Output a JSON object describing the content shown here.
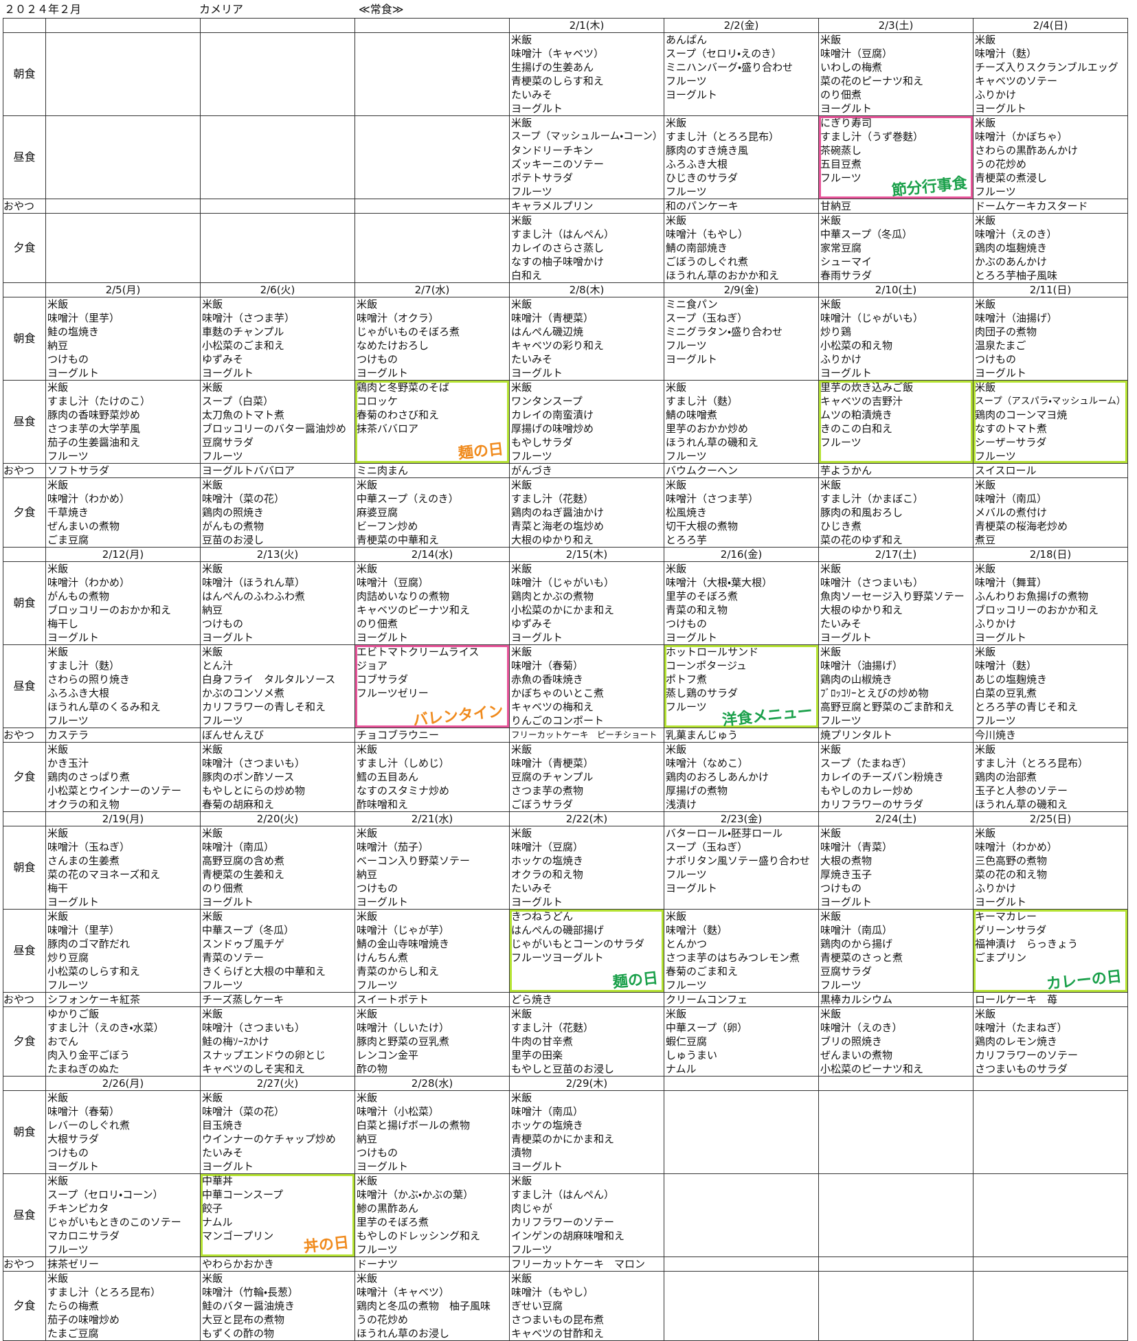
{
  "header": {
    "month": "２０２４年２月",
    "facility": "カメリア",
    "diet": "≪常食≫"
  },
  "meal_labels": {
    "breakfast": "朝食",
    "lunch": "昼食",
    "snack": "おやつ",
    "dinner": "夕食"
  },
  "annotations": [
    "節分行事食",
    "麺の日",
    "バレンタイン",
    "洋食メニュー",
    "麺の日",
    "カレーの日",
    "丼の日"
  ],
  "weeks": [
    {
      "days": [
        null,
        null,
        null,
        {
          "date": "2/1(木)",
          "breakfast": [
            "米飯",
            "味噌汁（キャベツ）",
            "生揚げの生姜あん",
            "青梗菜のしらす和え",
            "たいみそ",
            "ヨーグルト"
          ],
          "lunch": [
            "米飯",
            "スープ（マッシュルーム・コーン）",
            "タンドリーチキン",
            "ズッキーニのソテー",
            "ポテトサラダ",
            "フルーツ"
          ],
          "snack": "キャラメルプリン",
          "dinner": [
            "米飯",
            "すまし汁（はんぺん）",
            "カレイのさらさ蒸し",
            "なすの柚子味噌かけ",
            "白和え"
          ]
        },
        {
          "date": "2/2(金)",
          "breakfast": [
            "あんぱん",
            "スープ（セロリ・えのき）",
            "ミニハンバーグ・盛り合わせ",
            "フルーツ",
            "ヨーグルト"
          ],
          "lunch": [
            "米飯",
            "すまし汁（とろろ昆布）",
            "豚肉のすき焼き風",
            "ふろふき大根",
            "ひじきのサラダ",
            "フルーツ"
          ],
          "snack": "和のパンケーキ",
          "dinner": [
            "米飯",
            "味噌汁（もやし）",
            "鯖の南部焼き",
            "ごぼうのしぐれ煮",
            "ほうれん草のおかか和え"
          ]
        },
        {
          "date": "2/3(土)",
          "breakfast": [
            "米飯",
            "味噌汁（豆腐）",
            "いわしの梅煮",
            "菜の花のピーナツ和え",
            "のり佃煮",
            "ヨーグルト"
          ],
          "lunch": [
            "にぎり寿司",
            "すまし汁（うず巻麩）",
            "茶碗蒸し",
            "五目豆煮",
            "フルーツ"
          ],
          "snack": "甘納豆",
          "dinner": [
            "米飯",
            "中華スープ（冬瓜）",
            "家常豆腐",
            "シューマイ",
            "春雨サラダ"
          ]
        },
        {
          "date": "2/4(日)",
          "breakfast": [
            "米飯",
            "味噌汁（麩）",
            "チーズ入りスクランブルエッグ",
            "キャベツのソテー",
            "ふりかけ",
            "ヨーグルト"
          ],
          "lunch": [
            "米飯",
            "味噌汁（かぼちゃ）",
            "さわらの黒酢あんかけ",
            "うの花炒め",
            "青梗菜の煮浸し",
            "フルーツ"
          ],
          "snack": "ドームケーキカスタード",
          "dinner": [
            "米飯",
            "味噌汁（えのき）",
            "鶏肉の塩麹焼き",
            "かぶのあんかけ",
            "とろろ芋柚子風味"
          ]
        }
      ]
    },
    {
      "days": [
        {
          "date": "2/5(月)",
          "breakfast": [
            "米飯",
            "味噌汁（里芋）",
            "鮭の塩焼き",
            "納豆",
            "つけもの",
            "ヨーグルト"
          ],
          "lunch": [
            "米飯",
            "すまし汁（たけのこ）",
            "豚肉の香味野菜炒め",
            "さつま芋の大学芋風",
            "茄子の生姜醤油和え",
            "フルーツ"
          ],
          "snack": "ソフトサラダ",
          "dinner": [
            "米飯",
            "味噌汁（わかめ）",
            "千草焼き",
            "ぜんまいの煮物",
            "ごま豆腐"
          ]
        },
        {
          "date": "2/6(火)",
          "breakfast": [
            "米飯",
            "味噌汁（さつま芋）",
            "車麩のチャンプル",
            "小松菜のごま和え",
            "ゆずみそ",
            "ヨーグルト"
          ],
          "lunch": [
            "米飯",
            "スープ（白菜）",
            "太刀魚のトマト煮",
            "ブロッコリーのバター醤油炒め",
            "豆腐サラダ",
            "フルーツ"
          ],
          "snack": "ヨーグルトババロア",
          "dinner": [
            "米飯",
            "味噌汁（菜の花）",
            "鶏肉の照焼き",
            "がんもの煮物",
            "豆苗のお浸し"
          ]
        },
        {
          "date": "2/7(水)",
          "breakfast": [
            "米飯",
            "味噌汁（オクラ）",
            "じゃがいものそぼろ煮",
            "なめたけおろし",
            "つけもの",
            "ヨーグルト"
          ],
          "lunch": [
            "鶏肉と冬野菜のそば",
            "コロッケ",
            "春菊のわさび和え",
            "抹茶ババロア"
          ],
          "snack": "ミニ肉まん",
          "dinner": [
            "米飯",
            "中華スープ（えのき）",
            "麻婆豆腐",
            "ビーフン炒め",
            "青梗菜の中華和え"
          ]
        },
        {
          "date": "2/8(木)",
          "breakfast": [
            "米飯",
            "味噌汁（青梗菜）",
            "はんぺん磯辺焼",
            "キャベツの彩り和え",
            "たいみそ",
            "ヨーグルト"
          ],
          "lunch": [
            "米飯",
            "ワンタンスープ",
            "カレイの南蛮漬け",
            "厚揚げの味噌炒め",
            "もやしサラダ",
            "フルーツ"
          ],
          "snack": "がんづき",
          "dinner": [
            "米飯",
            "すまし汁（花麩）",
            "鶏肉のねぎ醤油かけ",
            "青菜と海老の塩炒め",
            "大根のゆかり和え"
          ]
        },
        {
          "date": "2/9(金)",
          "breakfast": [
            "ミニ食パン",
            "スープ（玉ねぎ）",
            "ミニグラタン・盛り合わせ",
            "フルーツ",
            "ヨーグルト"
          ],
          "lunch": [
            "米飯",
            "すまし汁（麩）",
            "鯖の味噌煮",
            "里芋のおかか炒め",
            "ほうれん草の磯和え",
            "フルーツ"
          ],
          "snack": "バウムクーヘン",
          "dinner": [
            "米飯",
            "味噌汁（さつま芋）",
            "松風焼き",
            "切干大根の煮物",
            "とろろ芋"
          ]
        },
        {
          "date": "2/10(土)",
          "breakfast": [
            "米飯",
            "味噌汁（じゃがいも）",
            "炒り鶏",
            "小松菜の和え物",
            "ふりかけ",
            "ヨーグルト"
          ],
          "lunch": [
            "里芋の炊き込みご飯",
            "キャベツの吉野汁",
            "ムツの粕漬焼き",
            "きのこの白和え",
            "フルーツ"
          ],
          "snack": "芋ようかん",
          "dinner": [
            "米飯",
            "すまし汁（かまぼこ）",
            "豚肉の和風おろし",
            "ひじき煮",
            "菜の花のゆず和え"
          ]
        },
        {
          "date": "2/11(日)",
          "breakfast": [
            "米飯",
            "味噌汁（油揚げ）",
            "肉団子の煮物",
            "温泉たまご",
            "つけもの",
            "ヨーグルト"
          ],
          "lunch": [
            "米飯",
            "スープ（アスパラ・マッシュルーム）",
            "鶏肉のコーンマヨ焼",
            "なすのトマト煮",
            "シーザーサラダ",
            "フルーツ"
          ],
          "snack": "スイスロール",
          "dinner": [
            "米飯",
            "味噌汁（南瓜）",
            "メバルの煮付け",
            "青梗菜の桜海老炒め",
            "煮豆"
          ]
        }
      ]
    },
    {
      "days": [
        {
          "date": "2/12(月)",
          "breakfast": [
            "米飯",
            "味噌汁（わかめ）",
            "がんもの煮物",
            "ブロッコリーのおかか和え",
            "梅干し",
            "ヨーグルト"
          ],
          "lunch": [
            "米飯",
            "すまし汁（麩）",
            "さわらの照り焼き",
            "ふろふき大根",
            "ほうれん草のくるみ和え",
            "フルーツ"
          ],
          "snack": "カステラ",
          "dinner": [
            "米飯",
            "かき玉汁",
            "鶏肉のさっぱり煮",
            "小松菜とウインナーのソテー",
            "オクラの和え物"
          ]
        },
        {
          "date": "2/13(火)",
          "breakfast": [
            "米飯",
            "味噌汁（ほうれん草）",
            "はんぺんのふわふわ煮",
            "納豆",
            "つけもの",
            "ヨーグルト"
          ],
          "lunch": [
            "米飯",
            "とん汁",
            "白身フライ　タルタルソース",
            "かぶのコンソメ煮",
            "カリフラワーの青しそ和え",
            "フルーツ"
          ],
          "snack": "ぼんせんえび",
          "dinner": [
            "米飯",
            "味噌汁（さつまいも）",
            "豚肉のポン酢ソース",
            "もやしとにらの炒め物",
            "春菊の胡麻和え"
          ]
        },
        {
          "date": "2/14(水)",
          "breakfast": [
            "米飯",
            "味噌汁（豆腐）",
            "肉詰めいなりの煮物",
            "キャベツのピーナツ和え",
            "のり佃煮",
            "ヨーグルト"
          ],
          "lunch": [
            "エビトマトクリームライス",
            "ジョア",
            "コブサラダ",
            "フルーツゼリー"
          ],
          "snack": "チョコブラウニー",
          "dinner": [
            "米飯",
            "すまし汁（しめじ）",
            "鱈の五目あん",
            "なすのスタミナ炒め",
            "酢味噌和え"
          ]
        },
        {
          "date": "2/15(木)",
          "breakfast": [
            "米飯",
            "味噌汁（じゃがいも）",
            "鶏肉とかぶの煮物",
            "小松菜のかにかま和え",
            "ゆずみそ",
            "ヨーグルト"
          ],
          "lunch": [
            "米飯",
            "味噌汁（春菊）",
            "赤魚の香味焼き",
            "かぼちゃのいとこ煮",
            "キャベツの梅和え",
            "りんごのコンポート"
          ],
          "snack": "フリーカットケーキ　ピーチショート",
          "dinner": [
            "米飯",
            "味噌汁（青梗菜）",
            "豆腐のチャンプル",
            "さつま芋の煮物",
            "ごぼうサラダ"
          ]
        },
        {
          "date": "2/16(金)",
          "breakfast": [
            "米飯",
            "味噌汁（大根・葉大根）",
            "里芋のそぼろ煮",
            "青菜の和え物",
            "つけもの",
            "ヨーグルト"
          ],
          "lunch": [
            "ホットロールサンド",
            "コーンポタージュ",
            "ポトフ煮",
            "蒸し鶏のサラダ",
            "フルーツ"
          ],
          "snack": "乳菓まんじゅう",
          "dinner": [
            "米飯",
            "味噌汁（なめこ）",
            "鶏肉のおろしあんかけ",
            "厚揚げの煮物",
            "浅漬け"
          ]
        },
        {
          "date": "2/17(土)",
          "breakfast": [
            "米飯",
            "味噌汁（さつまいも）",
            "魚肉ソーセージ入り野菜ソテー",
            "大根のゆかり和え",
            "たいみそ",
            "ヨーグルト"
          ],
          "lunch": [
            "米飯",
            "味噌汁（油揚げ）",
            "鶏肉の山椒焼き",
            "ﾌﾞﾛｯｺﾘｰとえびの炒め物",
            "高野豆腐と野菜のごま酢和え",
            "フルーツ"
          ],
          "snack": "焼プリンタルト",
          "dinner": [
            "米飯",
            "スープ（たまねぎ）",
            "カレイのチーズパン粉焼き",
            "もやしのカレー炒め",
            "カリフラワーのサラダ"
          ]
        },
        {
          "date": "2/18(日)",
          "breakfast": [
            "米飯",
            "味噌汁（舞茸）",
            "ふんわりお魚揚げの煮物",
            "ブロッコリーのおかか和え",
            "ふりかけ",
            "ヨーグルト"
          ],
          "lunch": [
            "米飯",
            "味噌汁（麩）",
            "あじの塩麹焼き",
            "白菜の豆乳煮",
            "とろろ芋の青じそ和え",
            "フルーツ"
          ],
          "snack": "今川焼き",
          "dinner": [
            "米飯",
            "すまし汁（とろろ昆布）",
            "鶏肉の治部煮",
            "玉子と人参のソテー",
            "ほうれん草の磯和え"
          ]
        }
      ]
    },
    {
      "days": [
        {
          "date": "2/19(月)",
          "breakfast": [
            "米飯",
            "味噌汁（玉ねぎ）",
            "さんまの生姜煮",
            "菜の花のマヨネーズ和え",
            "梅干",
            "ヨーグルト"
          ],
          "lunch": [
            "米飯",
            "味噌汁（里芋）",
            "豚肉のゴマ酢だれ",
            "炒り豆腐",
            "小松菜のしらす和え",
            "フルーツ"
          ],
          "snack": "シフォンケーキ紅茶",
          "dinner": [
            "ゆかりご飯",
            "すまし汁（えのき・水菜）",
            "おでん",
            "肉入り金平ごぼう",
            "たまねぎのぬた"
          ]
        },
        {
          "date": "2/20(火)",
          "breakfast": [
            "米飯",
            "味噌汁（南瓜）",
            "高野豆腐の含め煮",
            "青梗菜の生姜和え",
            "のり佃煮",
            "ヨーグルト"
          ],
          "lunch": [
            "米飯",
            "中華スープ（冬瓜）",
            "スンドゥブ風チゲ",
            "青菜のソテー",
            "きくらげと大根の中華和え",
            "フルーツ"
          ],
          "snack": "チーズ蒸しケーキ",
          "dinner": [
            "米飯",
            "味噌汁（さつまいも）",
            "鮭の梅ｿｰｽかけ",
            "スナップエンドウの卵とじ",
            "キャベツのしそ実和え"
          ]
        },
        {
          "date": "2/21(水)",
          "breakfast": [
            "米飯",
            "味噌汁（茄子）",
            "ベーコン入り野菜ソテー",
            "納豆",
            "つけもの",
            "ヨーグルト"
          ],
          "lunch": [
            "米飯",
            "味噌汁（じゃが芋）",
            "鯖の金山寺味噌焼き",
            "けんちん煮",
            "青菜のからし和え",
            "フルーツ"
          ],
          "snack": "スイートポテト",
          "dinner": [
            "米飯",
            "味噌汁（しいたけ）",
            "豚肉と野菜の豆乳煮",
            "レンコン金平",
            "酢の物"
          ]
        },
        {
          "date": "2/22(木)",
          "breakfast": [
            "米飯",
            "味噌汁（豆腐）",
            "ホッケの塩焼き",
            "オクラの和え物",
            "たいみそ",
            "ヨーグルト"
          ],
          "lunch": [
            "きつねうどん",
            "はんぺんの磯部揚げ",
            "じゃがいもとコーンのサラダ",
            "フルーツヨーグルト"
          ],
          "snack": "どら焼き",
          "dinner": [
            "米飯",
            "すまし汁（花麩）",
            "牛肉の甘辛煮",
            "里芋の田楽",
            "もやしと豆苗のお浸し"
          ]
        },
        {
          "date": "2/23(金)",
          "breakfast": [
            "バターロール・胚芽ロール",
            "スープ（玉ねぎ）",
            "ナポリタン風ソテー盛り合わせ",
            "フルーツ",
            "ヨーグルト"
          ],
          "lunch": [
            "米飯",
            "味噌汁（麩）",
            "とんかつ",
            "さつま芋のはちみつレモン煮",
            "春菊のごま和え",
            "フルーツ"
          ],
          "snack": "クリームコンフェ",
          "dinner": [
            "米飯",
            "中華スープ（卵）",
            "蝦仁豆腐",
            "しゅうまい",
            "ナムル"
          ]
        },
        {
          "date": "2/24(土)",
          "breakfast": [
            "米飯",
            "味噌汁（青菜）",
            "大根の煮物",
            "厚焼き玉子",
            "つけもの",
            "ヨーグルト"
          ],
          "lunch": [
            "米飯",
            "味噌汁（南瓜）",
            "鶏肉のから揚げ",
            "青梗菜のさっと煮",
            "豆腐サラダ",
            "フルーツ"
          ],
          "snack": "黒棒カルシウム",
          "dinner": [
            "米飯",
            "味噌汁（えのき）",
            "ブリの照焼き",
            "ぜんまいの煮物",
            "小松菜のピーナツ和え"
          ]
        },
        {
          "date": "2/25(日)",
          "breakfast": [
            "米飯",
            "味噌汁（わかめ）",
            "三色高野の煮物",
            "菜の花の和え物",
            "ふりかけ",
            "ヨーグルト"
          ],
          "lunch": [
            "キーマカレー",
            "グリーンサラダ",
            "福神漬け　らっきょう",
            "ごまプリン"
          ],
          "snack": "ロールケーキ　苺",
          "dinner": [
            "米飯",
            "味噌汁（たまねぎ）",
            "鶏肉のレモン焼き",
            "カリフラワーのソテー",
            "さつまいものサラダ"
          ]
        }
      ]
    },
    {
      "days": [
        {
          "date": "2/26(月)",
          "breakfast": [
            "米飯",
            "味噌汁（春菊）",
            "レバーのしぐれ煮",
            "大根サラダ",
            "つけもの",
            "ヨーグルト"
          ],
          "lunch": [
            "米飯",
            "スープ（セロリ・コーン）",
            "チキンピカタ",
            "じゃがいもときのこのソテー",
            "マカロニサラダ",
            "フルーツ"
          ],
          "snack": "抹茶ゼリー",
          "dinner": [
            "米飯",
            "すまし汁（とろろ昆布）",
            "たらの梅煮",
            "茄子の味噌炒め",
            "たまご豆腐"
          ]
        },
        {
          "date": "2/27(火)",
          "breakfast": [
            "米飯",
            "味噌汁（菜の花）",
            "目玉焼き",
            "ウインナーのケチャップ炒め",
            "たいみそ",
            "ヨーグルト"
          ],
          "lunch": [
            "中華丼",
            "中華コーンスープ",
            "餃子",
            "ナムル",
            "マンゴープリン"
          ],
          "snack": "やわらかおかき",
          "dinner": [
            "米飯",
            "味噌汁（竹輪・長葱）",
            "鮭のバター醤油焼き",
            "大豆と昆布の煮物",
            "もずくの酢の物"
          ]
        },
        {
          "date": "2/28(水)",
          "breakfast": [
            "米飯",
            "味噌汁（小松菜）",
            "白菜と揚げボールの煮物",
            "納豆",
            "つけもの",
            "ヨーグルト"
          ],
          "lunch": [
            "米飯",
            "味噌汁（かぶ・かぶの葉）",
            "鯵の黒酢あん",
            "里芋のそぼろ煮",
            "もやしのドレッシング和え",
            "フルーツ"
          ],
          "snack": "ドーナツ",
          "dinner": [
            "米飯",
            "味噌汁（キャベツ）",
            "鶏肉と冬瓜の煮物　柚子風味",
            "うの花炒め",
            "ほうれん草のお浸し"
          ]
        },
        {
          "date": "2/29(木)",
          "breakfast": [
            "米飯",
            "味噌汁（南瓜）",
            "ホッケの塩焼き",
            "青梗菜のかにかま和え",
            "漬物",
            "ヨーグルト"
          ],
          "lunch": [
            "米飯",
            "すまし汁（はんぺん）",
            "肉じゃが",
            "カリフラワーのソテー",
            "インゲンの胡麻味噌和え",
            "フルーツ"
          ],
          "snack": "フリーカットケーキ　マロン",
          "dinner": [
            "米飯",
            "味噌汁（もやし）",
            "ぎせい豆腐",
            "さつまいもの昆布煮",
            "キャベツの甘酢和え"
          ]
        },
        null,
        null,
        null
      ]
    }
  ]
}
